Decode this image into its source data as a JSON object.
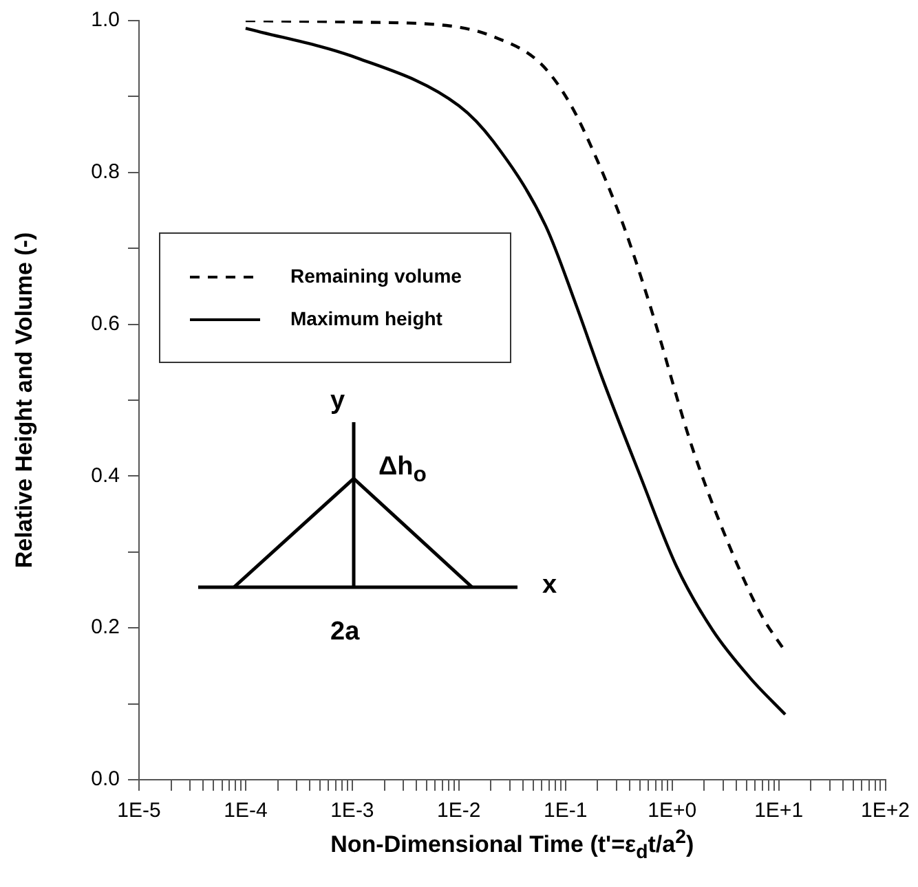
{
  "chart_data": {
    "type": "line",
    "xlabel": "Non-Dimensional Time (t'=ε$_{d}$t/a$^{2}$)",
    "ylabel": "Relative Height and Volume (-)",
    "log": "x",
    "legend": "left",
    "marker": "none",
    "grid": false,
    "xlim": [
      1e-05,
      100
    ],
    "xticks": [
      {
        "value": 1e-05,
        "label": "1E-5"
      },
      {
        "value": 2e-05,
        "label": null
      },
      {
        "value": 3e-05,
        "label": null
      },
      {
        "value": 4e-05,
        "label": null
      },
      {
        "value": 5e-05,
        "label": null
      },
      {
        "value": 6e-05,
        "label": null
      },
      {
        "value": 7e-05,
        "label": null
      },
      {
        "value": 8e-05,
        "label": null
      },
      {
        "value": 9e-05,
        "label": null
      },
      {
        "value": 0.0001,
        "label": "1E-4"
      },
      {
        "value": 0.0002,
        "label": null
      },
      {
        "value": 0.0003,
        "label": null
      },
      {
        "value": 0.0004,
        "label": null
      },
      {
        "value": 0.0005,
        "label": null
      },
      {
        "value": 0.0006,
        "label": null
      },
      {
        "value": 0.0007,
        "label": null
      },
      {
        "value": 0.0008,
        "label": null
      },
      {
        "value": 0.0009,
        "label": null
      },
      {
        "value": 0.001,
        "label": "1E-3"
      },
      {
        "value": 0.002,
        "label": null
      },
      {
        "value": 0.003,
        "label": null
      },
      {
        "value": 0.004,
        "label": null
      },
      {
        "value": 0.005,
        "label": null
      },
      {
        "value": 0.006,
        "label": null
      },
      {
        "value": 0.007,
        "label": null
      },
      {
        "value": 0.008,
        "label": null
      },
      {
        "value": 0.009,
        "label": null
      },
      {
        "value": 0.01,
        "label": "1E-2"
      },
      {
        "value": 0.02,
        "label": null
      },
      {
        "value": 0.03,
        "label": null
      },
      {
        "value": 0.04,
        "label": null
      },
      {
        "value": 0.05,
        "label": null
      },
      {
        "value": 0.06,
        "label": null
      },
      {
        "value": 0.07,
        "label": null
      },
      {
        "value": 0.08,
        "label": null
      },
      {
        "value": 0.09,
        "label": null
      },
      {
        "value": 0.1,
        "label": "1E-1"
      },
      {
        "value": 0.2,
        "label": null
      },
      {
        "value": 0.3,
        "label": null
      },
      {
        "value": 0.4,
        "label": null
      },
      {
        "value": 0.5,
        "label": null
      },
      {
        "value": 0.6,
        "label": null
      },
      {
        "value": 0.7,
        "label": null
      },
      {
        "value": 0.8,
        "label": null
      },
      {
        "value": 0.9,
        "label": null
      },
      {
        "value": 1,
        "label": "1E+0"
      },
      {
        "value": 2,
        "label": null
      },
      {
        "value": 3,
        "label": null
      },
      {
        "value": 4,
        "label": null
      },
      {
        "value": 5,
        "label": null
      },
      {
        "value": 6,
        "label": null
      },
      {
        "value": 7,
        "label": null
      },
      {
        "value": 8,
        "label": null
      },
      {
        "value": 9,
        "label": null
      },
      {
        "value": 10,
        "label": "1E+1"
      },
      {
        "value": 20,
        "label": null
      },
      {
        "value": 30,
        "label": null
      },
      {
        "value": 40,
        "label": null
      },
      {
        "value": 50,
        "label": null
      },
      {
        "value": 60,
        "label": null
      },
      {
        "value": 70,
        "label": null
      },
      {
        "value": 80,
        "label": null
      },
      {
        "value": 90,
        "label": null
      },
      {
        "value": 100,
        "label": "1E+2"
      }
    ],
    "ylim": [
      0,
      1.0
    ],
    "yticks": [
      {
        "value": 0,
        "label": "0.0"
      },
      {
        "value": 0.1,
        "label": null
      },
      0.2,
      {
        "value": 0.3,
        "label": null
      },
      0.4,
      {
        "value": 0.5,
        "label": null
      },
      0.6,
      {
        "value": 0.7,
        "label": null
      },
      0.8,
      {
        "value": 0.9,
        "label": null
      },
      {
        "value": 1,
        "label": "1.0"
      }
    ],
    "series": [
      {
        "name": "Remaining volume",
        "color": "#000000",
        "line_style": "dashed",
        "x": [
          0.0001,
          0.0012,
          0.0083,
          0.021,
          0.058,
          0.11,
          0.2,
          0.35,
          0.62,
          1.55,
          3.4,
          6.8,
          11.5
        ],
        "values": [
          1.0,
          0.998,
          0.993,
          0.979,
          0.944,
          0.891,
          0.815,
          0.73,
          0.625,
          0.437,
          0.31,
          0.218,
          0.169
        ]
      },
      {
        "name": "Maximum height",
        "color": "#000000",
        "line_style": "solid",
        "x": [
          0.0001,
          0.0011,
          0.01,
          0.021,
          0.065,
          0.126,
          0.22,
          0.5,
          1.1,
          2.4,
          5.4,
          11.5
        ],
        "values": [
          0.99,
          0.951,
          0.888,
          0.841,
          0.73,
          0.625,
          0.53,
          0.401,
          0.281,
          0.197,
          0.134,
          0.086
        ]
      }
    ],
    "annotations": [
      "y",
      "Δh$_{o}$",
      "x",
      "2a"
    ]
  }
}
